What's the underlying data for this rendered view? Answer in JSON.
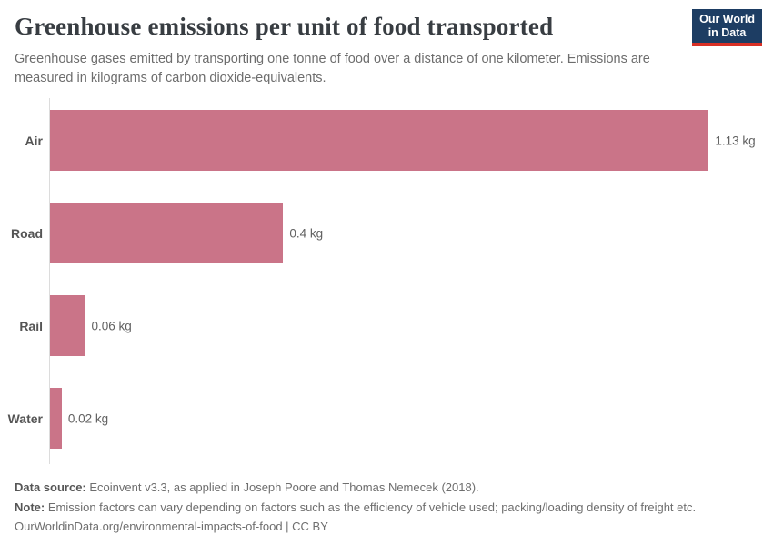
{
  "header": {
    "title": "Greenhouse emissions per unit of food transported",
    "subtitle": "Greenhouse gases emitted by transporting one tonne of food over a distance of one kilometer. Emissions are measured in kilograms of carbon dioxide-equivalents.",
    "logo": {
      "line1": "Our World",
      "line2": "in Data"
    }
  },
  "chart_data": {
    "type": "bar",
    "orientation": "horizontal",
    "title": "Greenhouse emissions per unit of food transported",
    "categories": [
      "Air",
      "Road",
      "Rail",
      "Water"
    ],
    "values": [
      1.13,
      0.4,
      0.06,
      0.02
    ],
    "value_labels": [
      "1.13 kg",
      "0.4 kg",
      "0.06 kg",
      "0.02 kg"
    ],
    "unit": "kg CO2-equivalents per tonne-km",
    "xlim": [
      0,
      1.2
    ],
    "grid": false,
    "legend": "none",
    "bar_color": "#ca7488"
  },
  "footer": {
    "data_source_label": "Data source:",
    "data_source_text": " Ecoinvent v3.3, as applied in Joseph Poore and Thomas Nemecek (2018).",
    "note_label": "Note:",
    "note_text": " Emission factors can vary depending on factors such as the efficiency of vehicle used; packing/loading density of freight etc.",
    "attribution": "OurWorldinData.org/environmental-impacts-of-food | CC BY"
  },
  "colors": {
    "bar": "#ca7488",
    "logo_background": "#1d3d63",
    "logo_underline": "#d93025",
    "axis_line": "#dcdcdc",
    "title_text": "#383d42",
    "subtitle_text": "#6d6d6d"
  }
}
